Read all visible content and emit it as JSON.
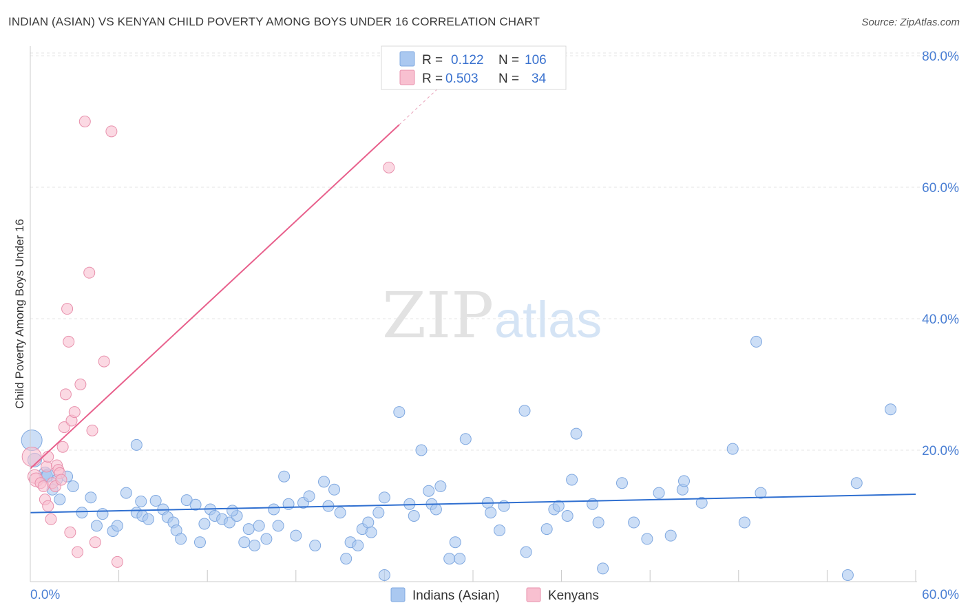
{
  "title": "INDIAN (ASIAN) VS KENYAN CHILD POVERTY AMONG BOYS UNDER 16 CORRELATION CHART",
  "source": "Source: ZipAtlas.com",
  "watermark": {
    "zip": "ZIP",
    "atlas": "atlas"
  },
  "legend": {
    "rows": [
      {
        "r_label": "R =",
        "r_value": "0.122",
        "n_label": "N =",
        "n_value": "106",
        "color": "#aac8f0",
        "stroke": "#7fa8e0"
      },
      {
        "r_label": "R =",
        "r_value": "0.503",
        "n_label": "N =",
        "n_value": "34",
        "color": "#f8c0d0",
        "stroke": "#e890ac"
      }
    ]
  },
  "bottom_legend": {
    "series1": "Indians (Asian)",
    "series2": "Kenyans"
  },
  "chart_data": {
    "type": "scatter",
    "title": "INDIAN (ASIAN) VS KENYAN CHILD POVERTY AMONG BOYS UNDER 16 CORRELATION CHART",
    "xlabel": "",
    "ylabel": "Child Poverty Among Boys Under 16",
    "xlim": [
      0,
      60
    ],
    "ylim": [
      0,
      80
    ],
    "x_tick_labels": [
      "0.0%",
      "60.0%"
    ],
    "y_tick_labels": [
      "20.0%",
      "40.0%",
      "60.0%",
      "80.0%"
    ],
    "y_ticks": [
      20,
      40,
      60,
      80
    ],
    "grid": true,
    "series": [
      {
        "name": "Indians (Asian)",
        "color": "#aac8f0",
        "stroke": "#7fa8e0",
        "trend": {
          "x": [
            0,
            60
          ],
          "y": [
            10.5,
            13.3
          ],
          "color": "#2f6fd0"
        },
        "points": [
          [
            0.1,
            21.5,
            15
          ],
          [
            0.3,
            18.5,
            10
          ],
          [
            1.0,
            16.5,
            9
          ],
          [
            1.1,
            16.0,
            9
          ],
          [
            1.2,
            16.2,
            9
          ],
          [
            1.5,
            14.0,
            8
          ],
          [
            1.8,
            15.5,
            8
          ],
          [
            2.0,
            12.5,
            8
          ],
          [
            2.5,
            16.0,
            8
          ],
          [
            2.9,
            14.5,
            8
          ],
          [
            3.5,
            10.5,
            8
          ],
          [
            4.1,
            12.8,
            8
          ],
          [
            4.5,
            8.5,
            8
          ],
          [
            4.9,
            10.3,
            8
          ],
          [
            5.6,
            7.7,
            8
          ],
          [
            5.9,
            8.5,
            8
          ],
          [
            6.5,
            13.5,
            8
          ],
          [
            7.2,
            10.5,
            8
          ],
          [
            7.5,
            12.2,
            8
          ],
          [
            7.2,
            20.8,
            8
          ],
          [
            7.6,
            10.0,
            8
          ],
          [
            8.0,
            9.5,
            8
          ],
          [
            8.5,
            12.3,
            8
          ],
          [
            9.0,
            11.0,
            8
          ],
          [
            9.3,
            9.8,
            8
          ],
          [
            9.7,
            9.0,
            8
          ],
          [
            9.9,
            7.8,
            8
          ],
          [
            10.2,
            6.5,
            8
          ],
          [
            10.6,
            12.4,
            8
          ],
          [
            11.2,
            11.7,
            8
          ],
          [
            11.5,
            6.0,
            8
          ],
          [
            11.8,
            8.8,
            8
          ],
          [
            12.2,
            11.0,
            8
          ],
          [
            12.5,
            10.0,
            8
          ],
          [
            13.0,
            9.5,
            8
          ],
          [
            13.5,
            9.0,
            8
          ],
          [
            14.0,
            10.0,
            8
          ],
          [
            13.7,
            10.8,
            8
          ],
          [
            14.5,
            6.0,
            8
          ],
          [
            14.8,
            8.0,
            8
          ],
          [
            15.2,
            5.5,
            8
          ],
          [
            15.5,
            8.5,
            8
          ],
          [
            16.0,
            6.5,
            8
          ],
          [
            16.5,
            11.0,
            8
          ],
          [
            16.8,
            8.5,
            8
          ],
          [
            17.2,
            16.0,
            8
          ],
          [
            17.5,
            11.8,
            8
          ],
          [
            18.0,
            7.0,
            8
          ],
          [
            18.5,
            12.0,
            8
          ],
          [
            18.9,
            13.0,
            8
          ],
          [
            19.3,
            5.5,
            8
          ],
          [
            19.9,
            15.2,
            8
          ],
          [
            20.2,
            11.5,
            8
          ],
          [
            20.6,
            14.0,
            8
          ],
          [
            21.0,
            10.5,
            8
          ],
          [
            21.4,
            3.5,
            8
          ],
          [
            21.7,
            6.0,
            8
          ],
          [
            22.2,
            5.5,
            8
          ],
          [
            22.5,
            8.0,
            8
          ],
          [
            22.9,
            9.0,
            8
          ],
          [
            23.1,
            7.5,
            8
          ],
          [
            23.6,
            10.5,
            8
          ],
          [
            24.0,
            12.8,
            8
          ],
          [
            24.0,
            1.0,
            8
          ],
          [
            25.0,
            25.8,
            8
          ],
          [
            26.0,
            10.0,
            8
          ],
          [
            25.7,
            11.8,
            8
          ],
          [
            26.5,
            20.0,
            8
          ],
          [
            27.0,
            13.8,
            8
          ],
          [
            27.2,
            11.8,
            8
          ],
          [
            27.5,
            11.0,
            8
          ],
          [
            27.8,
            14.5,
            8
          ],
          [
            28.4,
            3.5,
            8
          ],
          [
            28.8,
            6.0,
            8
          ],
          [
            29.1,
            3.5,
            8
          ],
          [
            29.5,
            21.7,
            8
          ],
          [
            31.0,
            12.0,
            8
          ],
          [
            31.2,
            10.5,
            8
          ],
          [
            31.8,
            7.8,
            8
          ],
          [
            32.1,
            11.5,
            8
          ],
          [
            33.5,
            26.0,
            8
          ],
          [
            33.6,
            4.5,
            8
          ],
          [
            35.0,
            8.0,
            8
          ],
          [
            35.5,
            11.0,
            8
          ],
          [
            35.8,
            11.5,
            8
          ],
          [
            36.4,
            10.0,
            8
          ],
          [
            37.0,
            22.5,
            8
          ],
          [
            36.7,
            15.5,
            8
          ],
          [
            38.1,
            11.8,
            8
          ],
          [
            38.5,
            9.0,
            8
          ],
          [
            38.8,
            2.0,
            8
          ],
          [
            40.1,
            15.0,
            8
          ],
          [
            40.9,
            9.0,
            8
          ],
          [
            41.8,
            6.5,
            8
          ],
          [
            42.6,
            13.5,
            8
          ],
          [
            43.4,
            7.0,
            8
          ],
          [
            44.2,
            14.0,
            8
          ],
          [
            44.3,
            15.3,
            8
          ],
          [
            45.5,
            12.0,
            8
          ],
          [
            47.6,
            20.2,
            8
          ],
          [
            48.4,
            9.0,
            8
          ],
          [
            49.2,
            36.5,
            8
          ],
          [
            49.5,
            13.5,
            8
          ],
          [
            56.0,
            15.0,
            8
          ],
          [
            55.4,
            1.0,
            8
          ],
          [
            58.3,
            26.2,
            8
          ]
        ]
      },
      {
        "name": "Kenyans",
        "color": "#f8c0d0",
        "stroke": "#e890ac",
        "trend": {
          "x": [
            0,
            25
          ],
          "y": [
            17.2,
            69.5
          ],
          "dash_to": [
            30,
            80
          ],
          "color": "#e8608c"
        },
        "points": [
          [
            0.1,
            19.0,
            14
          ],
          [
            0.3,
            16.0,
            10
          ],
          [
            0.4,
            15.5,
            10
          ],
          [
            0.7,
            15.0,
            8
          ],
          [
            0.9,
            14.5,
            8
          ],
          [
            1.0,
            12.5,
            8
          ],
          [
            1.1,
            17.5,
            8
          ],
          [
            1.2,
            19.0,
            8
          ],
          [
            1.2,
            11.5,
            8
          ],
          [
            1.4,
            9.5,
            8
          ],
          [
            1.5,
            15.0,
            8
          ],
          [
            1.7,
            14.5,
            8
          ],
          [
            1.8,
            17.7,
            8
          ],
          [
            1.9,
            17.0,
            8
          ],
          [
            2.0,
            16.5,
            8
          ],
          [
            2.1,
            15.5,
            8
          ],
          [
            2.2,
            20.5,
            8
          ],
          [
            2.3,
            23.5,
            8
          ],
          [
            2.4,
            28.5,
            8
          ],
          [
            2.5,
            41.5,
            8
          ],
          [
            2.6,
            36.5,
            8
          ],
          [
            2.7,
            7.5,
            8
          ],
          [
            2.8,
            24.5,
            8
          ],
          [
            3.0,
            25.8,
            8
          ],
          [
            3.2,
            4.5,
            8
          ],
          [
            3.4,
            30.0,
            8
          ],
          [
            3.7,
            70.0,
            8
          ],
          [
            4.0,
            47.0,
            8
          ],
          [
            4.2,
            23.0,
            8
          ],
          [
            4.4,
            6.0,
            8
          ],
          [
            5.0,
            33.5,
            8
          ],
          [
            5.5,
            68.5,
            8
          ],
          [
            5.9,
            3.0,
            8
          ],
          [
            24.3,
            63.0,
            8
          ]
        ]
      }
    ]
  }
}
